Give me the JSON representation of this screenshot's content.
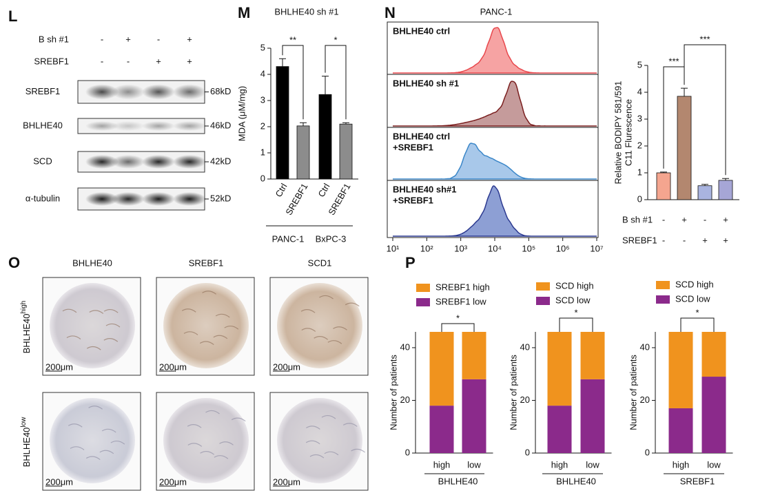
{
  "western_blot": {
    "panel": "L",
    "conditions": [
      {
        "name": "B sh #1",
        "signs": [
          "-",
          "+",
          "-",
          "+"
        ]
      },
      {
        "name": "SREBF1",
        "signs": [
          "-",
          "-",
          "+",
          "+"
        ]
      }
    ],
    "bands": [
      {
        "name": "SREBF1",
        "size": "68kD"
      },
      {
        "name": "BHLHE40",
        "size": "46kD"
      },
      {
        "name": "SCD",
        "size": "42kD"
      },
      {
        "name": "α-tubulin",
        "size": "52kD"
      }
    ]
  },
  "flow": {
    "panel": "N",
    "title": "PANC-1",
    "xscale": "log",
    "xlim": [
      10,
      10000000
    ],
    "xticks": [
      {
        "value": 10,
        "label": "10¹"
      },
      {
        "value": 100,
        "label": "10²"
      },
      {
        "value": 1000,
        "label": "10³"
      },
      {
        "value": 10000,
        "label": "10⁴"
      },
      {
        "value": 100000,
        "label": "10⁵"
      },
      {
        "value": 1000000,
        "label": "10⁶"
      },
      {
        "value": 10000000,
        "label": "10⁷"
      }
    ],
    "tracks": [
      {
        "name": [
          "BHLHE40 ctrl"
        ],
        "text_color": "#d7263d",
        "color": "#e8474c",
        "fill": "#f6a3a3"
      },
      {
        "name": [
          "BHLHE40 sh #1"
        ],
        "text_color": "#7a3b1a",
        "color": "#7a1e1e",
        "fill": "#c59b9b"
      },
      {
        "name": [
          "BHLHE40 ctrl",
          "+SREBF1"
        ],
        "text_color": "#2a7ab8",
        "color": "#3a86c8",
        "fill": "#a8c8ea"
      },
      {
        "name": [
          "BHLHE40 sh#1",
          "+SREBF1"
        ],
        "text_color": "#2e2f6e",
        "color": "#2b3990",
        "fill": "#8d9fd4"
      }
    ]
  },
  "ihc": {
    "panel": "O",
    "columns": [
      "BHLHE40",
      "SREBF1",
      "SCD1"
    ],
    "rows": [
      {
        "base": "BHLHE40",
        "sup": "high"
      },
      {
        "base": "BHLHE40",
        "sup": "low"
      }
    ],
    "scale_bar": "200μm"
  },
  "chart_data": [
    {
      "type": "bar",
      "panel": "M",
      "title": "BHLHE40 sh #1",
      "ylabel": [
        "MDA (μM/mg)"
      ],
      "categories": [
        "Ctrl",
        "SREBF1",
        "Ctrl",
        "SREBF1"
      ],
      "groups": [
        "PANC-1",
        "BxPC-3"
      ],
      "values": [
        4.3,
        2.03,
        3.23,
        2.1
      ],
      "errors": [
        0.3,
        0.12,
        0.7,
        0.05
      ],
      "colors": [
        "#000000",
        "#8c8c8c",
        "#000000",
        "#8c8c8c"
      ],
      "ylim": [
        0,
        5
      ],
      "yticks": [
        0,
        1,
        2,
        3,
        4,
        5
      ],
      "significance": [
        {
          "label": "**",
          "pair": [
            0,
            1
          ]
        },
        {
          "label": "*",
          "pair": [
            2,
            3
          ]
        }
      ]
    },
    {
      "type": "bar",
      "ylabel": [
        "Relative BODIPY 581/591",
        "C11 Flurescence"
      ],
      "values": [
        1.0,
        3.85,
        0.52,
        0.72
      ],
      "errors": [
        0.03,
        0.3,
        0.05,
        0.07
      ],
      "colors": [
        "#f4a58f",
        "#b3876f",
        "#a9b4e0",
        "#a6a6d6"
      ],
      "ylim": [
        0,
        5
      ],
      "yticks": [
        0,
        1,
        2,
        3,
        4,
        5
      ],
      "conditions": [
        {
          "name": "B sh #1",
          "signs": [
            "-",
            "+",
            "-",
            "+"
          ]
        },
        {
          "name": "SREBF1",
          "signs": [
            "-",
            "-",
            "+",
            "+"
          ]
        }
      ],
      "significance": [
        {
          "label": "***",
          "pair": [
            0,
            1
          ]
        },
        {
          "label": "***",
          "pair": [
            1,
            3
          ]
        }
      ]
    },
    {
      "type": "stacked_bar",
      "panel": "P",
      "categories": [
        "high",
        "low"
      ],
      "xlabel": "BHLHE40",
      "ylabel": "Number of patients",
      "series": [
        {
          "name": "SREBF1 low",
          "color": "#8b2a8b",
          "values": [
            18,
            28
          ]
        },
        {
          "name": "SREBF1 high",
          "color": "#f0931e",
          "values": [
            28,
            18
          ]
        }
      ],
      "ylim": [
        0,
        46
      ],
      "yticks": [
        0,
        20,
        40
      ],
      "significance": [
        {
          "label": "*",
          "pair": [
            0,
            1
          ]
        }
      ]
    },
    {
      "type": "stacked_bar",
      "categories": [
        "high",
        "low"
      ],
      "xlabel": "BHLHE40",
      "ylabel": "Number of patients",
      "series": [
        {
          "name": "SCD low",
          "color": "#8b2a8b",
          "values": [
            18,
            28
          ]
        },
        {
          "name": "SCD high",
          "color": "#f0931e",
          "values": [
            28,
            18
          ]
        }
      ],
      "ylim": [
        0,
        46
      ],
      "yticks": [
        0,
        20,
        40
      ],
      "significance": [
        {
          "label": "*",
          "pair": [
            0,
            1
          ]
        }
      ]
    },
    {
      "type": "stacked_bar",
      "categories": [
        "high",
        "low"
      ],
      "xlabel": "SREBF1",
      "ylabel": "Number of patients",
      "series": [
        {
          "name": "SCD low",
          "color": "#8b2a8b",
          "values": [
            17,
            29
          ]
        },
        {
          "name": "SCD high",
          "color": "#f0931e",
          "values": [
            29,
            17
          ]
        }
      ],
      "ylim": [
        0,
        46
      ],
      "yticks": [
        0,
        20,
        40
      ],
      "significance": [
        {
          "label": "*",
          "pair": [
            0,
            1
          ]
        }
      ]
    }
  ]
}
